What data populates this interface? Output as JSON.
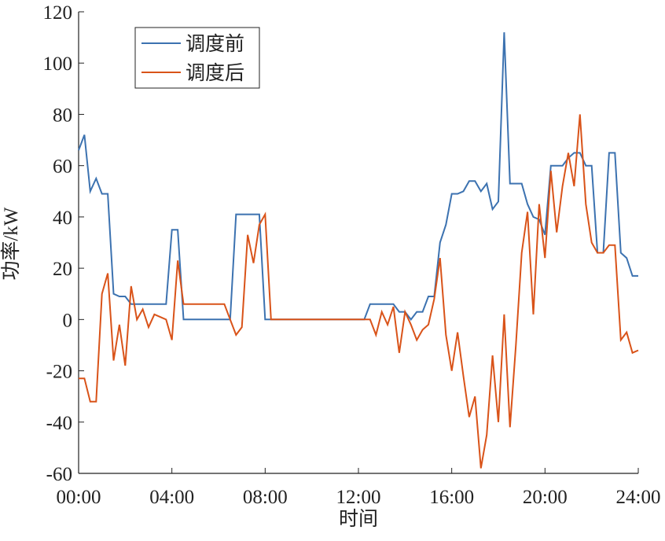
{
  "chart_data": {
    "type": "line",
    "x_label": "时间",
    "y_label": "功率/kW",
    "x": [
      0,
      0.25,
      0.5,
      0.75,
      1,
      1.25,
      1.5,
      1.75,
      2,
      2.25,
      2.5,
      2.75,
      3,
      3.25,
      3.5,
      3.75,
      4,
      4.25,
      4.5,
      4.75,
      5,
      5.25,
      5.5,
      5.75,
      6,
      6.25,
      6.5,
      6.75,
      7,
      7.25,
      7.5,
      7.75,
      8,
      8.25,
      8.5,
      8.75,
      9,
      9.25,
      9.5,
      9.75,
      10,
      10.25,
      10.5,
      10.75,
      11,
      11.25,
      11.5,
      11.75,
      12,
      12.25,
      12.5,
      12.75,
      13,
      13.25,
      13.5,
      13.75,
      14,
      14.25,
      14.5,
      14.75,
      15,
      15.25,
      15.5,
      15.75,
      16,
      16.25,
      16.5,
      16.75,
      17,
      17.25,
      17.5,
      17.75,
      18,
      18.25,
      18.5,
      18.75,
      19,
      19.25,
      19.5,
      19.75,
      20,
      20.25,
      20.5,
      20.75,
      21,
      21.25,
      21.5,
      21.75,
      22,
      22.25,
      22.5,
      22.75,
      23,
      23.25,
      23.5,
      23.75,
      24
    ],
    "series": [
      {
        "name": "调度前",
        "color": "#3c72b0",
        "values": [
          66,
          72,
          50,
          55,
          49,
          49,
          10,
          9,
          9,
          6,
          6,
          6,
          6,
          6,
          6,
          6,
          35,
          35,
          0,
          0,
          0,
          0,
          0,
          0,
          0,
          0,
          0,
          41,
          41,
          41,
          41,
          41,
          0,
          0,
          0,
          0,
          0,
          0,
          0,
          0,
          0,
          0,
          0,
          0,
          0,
          0,
          0,
          0,
          0,
          0,
          6,
          6,
          6,
          6,
          6,
          3,
          3,
          0,
          3,
          3,
          9,
          9,
          30,
          37,
          49,
          49,
          50,
          54,
          54,
          50,
          53,
          43,
          46,
          112,
          53,
          53,
          53,
          45,
          40,
          39,
          33,
          60,
          60,
          60,
          63,
          65,
          65,
          60,
          60,
          26,
          26,
          65,
          65,
          26,
          24,
          17,
          17
        ]
      },
      {
        "name": "调度后",
        "color": "#d95319",
        "values": [
          -23,
          -23,
          -32,
          -32,
          10,
          18,
          -16,
          -2,
          -18,
          13,
          0,
          4,
          -3,
          2,
          1,
          0,
          -8,
          23,
          6,
          6,
          6,
          6,
          6,
          6,
          6,
          6,
          0,
          -6,
          -3,
          33,
          22,
          37,
          41,
          0,
          0,
          0,
          0,
          0,
          0,
          0,
          0,
          0,
          0,
          0,
          0,
          0,
          0,
          0,
          0,
          0,
          0,
          -6,
          3,
          -2,
          5,
          -13,
          3,
          -2,
          -8,
          -4,
          -2,
          8,
          24,
          -6,
          -20,
          -5,
          -22,
          -38,
          -30,
          -58,
          -45,
          -14,
          -40,
          2,
          -42,
          -10,
          26,
          42,
          2,
          45,
          24,
          58,
          34,
          52,
          65,
          52,
          80,
          45,
          30,
          26,
          26,
          29,
          29,
          -8,
          -5,
          -13,
          -12
        ]
      }
    ],
    "xlim": [
      0,
      24
    ],
    "xticks": [
      {
        "value": 0,
        "label": "00:00"
      },
      {
        "value": 4,
        "label": "04:00"
      },
      {
        "value": 8,
        "label": "08:00"
      },
      {
        "value": 12,
        "label": "12:00"
      },
      {
        "value": 16,
        "label": "16:00"
      },
      {
        "value": 20,
        "label": "20:00"
      },
      {
        "value": 24,
        "label": "24:00"
      }
    ],
    "ylim": [
      -60,
      120
    ],
    "yticks": [
      -60,
      -40,
      -20,
      0,
      20,
      40,
      60,
      80,
      100,
      120
    ],
    "legend": "upper left"
  }
}
